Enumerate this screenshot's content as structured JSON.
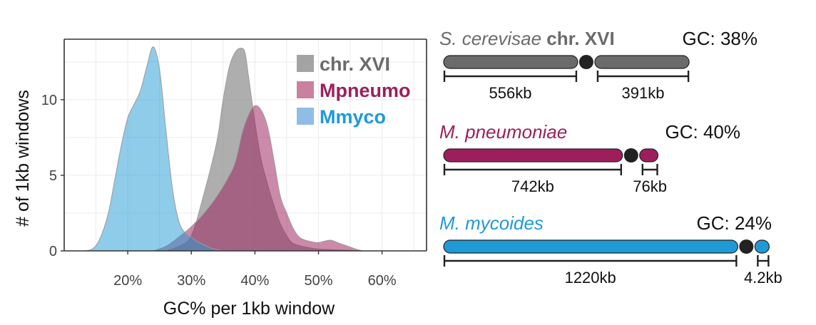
{
  "colors": {
    "chr": "#8f8f8f",
    "mpneumo": "#9c1f5c",
    "mmyco": "#1f9ad6",
    "chr_bar": "#6b6b6b",
    "centromere": "#222222",
    "panel_bg": "#ffffff",
    "grid": "#ebebeb"
  },
  "chart_data": [
    {
      "type": "area",
      "xlabel": "GC% per 1kb window",
      "ylabel": "# of 1kb windows",
      "xlim": [
        10,
        67
      ],
      "ylim": [
        0,
        14
      ],
      "grid": true,
      "legend_position": "top-right",
      "x_ticks": [
        {
          "value": 20,
          "label": "20%"
        },
        {
          "value": 30,
          "label": "30%"
        },
        {
          "value": 40,
          "label": "40%"
        },
        {
          "value": 50,
          "label": "50%"
        },
        {
          "value": 60,
          "label": "60%"
        }
      ],
      "y_ticks": [
        {
          "value": 0,
          "label": "0"
        },
        {
          "value": 5,
          "label": "5"
        },
        {
          "value": 10,
          "label": "10"
        }
      ],
      "series": [
        {
          "name": "chr. XVI",
          "color_key": "chr",
          "points": [
            [
              26,
              0
            ],
            [
              28,
              0.3
            ],
            [
              30,
              1.0
            ],
            [
              32,
              3.8
            ],
            [
              34,
              7.2
            ],
            [
              35,
              10.0
            ],
            [
              36,
              12.2
            ],
            [
              37,
              13.2
            ],
            [
              38,
              13.4
            ],
            [
              38.5,
              13.0
            ],
            [
              39,
              11.5
            ],
            [
              40,
              8.5
            ],
            [
              41,
              6.0
            ],
            [
              42,
              4.4
            ],
            [
              43,
              3.0
            ],
            [
              44,
              1.8
            ],
            [
              45,
              1.0
            ],
            [
              46,
              0.5
            ],
            [
              48,
              0.25
            ],
            [
              50,
              0.12
            ],
            [
              52,
              0.08
            ],
            [
              54,
              0.05
            ],
            [
              56,
              0.02
            ],
            [
              57,
              0
            ]
          ]
        },
        {
          "name": "Mpneumo",
          "color_key": "mpneumo",
          "points": [
            [
              24,
              0
            ],
            [
              26,
              0.3
            ],
            [
              28,
              0.9
            ],
            [
              30,
              1.6
            ],
            [
              32,
              2.5
            ],
            [
              34,
              3.6
            ],
            [
              36,
              5.0
            ],
            [
              37,
              6.0
            ],
            [
              38,
              7.8
            ],
            [
              39,
              9.0
            ],
            [
              40,
              9.6
            ],
            [
              41,
              9.3
            ],
            [
              42,
              8.2
            ],
            [
              43,
              6.0
            ],
            [
              44,
              3.6
            ],
            [
              45,
              2.5
            ],
            [
              46,
              1.5
            ],
            [
              47,
              0.9
            ],
            [
              48,
              0.7
            ],
            [
              49,
              0.6
            ],
            [
              50,
              0.55
            ],
            [
              51,
              0.65
            ],
            [
              52,
              0.7
            ],
            [
              53,
              0.55
            ],
            [
              54,
              0.4
            ],
            [
              55,
              0.25
            ],
            [
              56,
              0.1
            ],
            [
              57,
              0
            ]
          ]
        },
        {
          "name": "Mmyco",
          "color_key": "mmyco",
          "points": [
            [
              13,
              0
            ],
            [
              14,
              0.05
            ],
            [
              15,
              0.35
            ],
            [
              16,
              1.2
            ],
            [
              17,
              2.6
            ],
            [
              18,
              4.8
            ],
            [
              19,
              7.0
            ],
            [
              20,
              8.8
            ],
            [
              21,
              9.7
            ],
            [
              22,
              10.6
            ],
            [
              23,
              12.2
            ],
            [
              24,
              13.5
            ],
            [
              25,
              12.0
            ],
            [
              26,
              8.0
            ],
            [
              27,
              4.2
            ],
            [
              28,
              2.0
            ],
            [
              29,
              1.2
            ],
            [
              30,
              0.9
            ],
            [
              31,
              0.6
            ],
            [
              32,
              0.4
            ],
            [
              33,
              0.2
            ],
            [
              34,
              0.08
            ],
            [
              35,
              0.02
            ],
            [
              36,
              0
            ]
          ]
        }
      ]
    }
  ],
  "genomes": [
    {
      "name_italic": "S. cerevisae",
      "name_bold": " chr. XVI",
      "gc_label": "GC: 38%",
      "arm1_kb": 556,
      "arm2_kb": 391,
      "arm1_label": "556kb",
      "arm2_label": "391kb",
      "color_key": "chr_bar",
      "name_color_key": "chr_bar"
    },
    {
      "name_italic": "M. pneumoniae",
      "name_bold": "",
      "gc_label": "GC: 40%",
      "arm1_kb": 742,
      "arm2_kb": 76,
      "arm1_label": "742kb",
      "arm2_label": "76kb",
      "color_key": "mpneumo",
      "name_color_key": "mpneumo"
    },
    {
      "name_italic": "M. mycoides",
      "name_bold": "",
      "gc_label": "GC: 24%",
      "arm1_kb": 1220,
      "arm2_kb": 4.2,
      "arm1_label": "1220kb",
      "arm2_label": "4.2kb",
      "color_key": "mmyco",
      "name_color_key": "mmyco"
    }
  ]
}
